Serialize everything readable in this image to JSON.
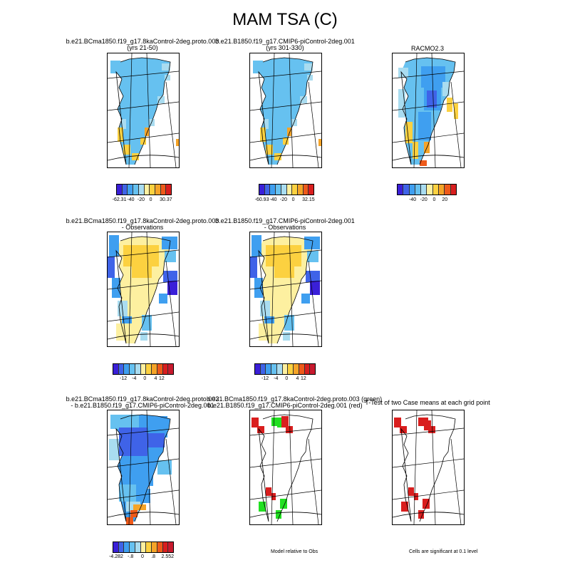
{
  "title": "MAM TSA (C)",
  "palette": [
    "#3a1fd8",
    "#3f63e8",
    "#3f9ff0",
    "#66c1f0",
    "#a9dcf0",
    "#fdf0a0",
    "#fcd140",
    "#f5a428",
    "#ee5a1a",
    "#d91e1e",
    "#c81a2e"
  ],
  "panels": {
    "p1": {
      "title": "b.e21.BCma1850.f19_g17.8kaControl-2deg.proto.003",
      "subtitle": "(yrs 21-50)",
      "labels": [
        "-62.31",
        "-40",
        "-20",
        "0",
        "30.37"
      ]
    },
    "p2": {
      "title": "b.e21.B1850.f19_g17.CMIP6-piControl-2deg.001",
      "subtitle": "(yrs 301-330)",
      "labels": [
        "-60.93",
        "-40",
        "-20",
        "0",
        "32.15"
      ]
    },
    "p3": {
      "title": "RACMO2.3",
      "labels": [
        "-40",
        "-20",
        "0",
        "20"
      ]
    },
    "p4": {
      "title": "b.e21.BCma1850.f19_g17.8kaControl-2deg.proto.003",
      "subtitle": "- Observations",
      "labels": [
        "-12",
        "-4",
        "0",
        "4",
        "12"
      ]
    },
    "p5": {
      "title": "b.e21.B1850.f19_g17.CMIP6-piControl-2deg.001",
      "subtitle": "- Observations",
      "labels": [
        "-12",
        "-4",
        "0",
        "4",
        "12"
      ]
    },
    "p7": {
      "title": "b.e21.BCma1850.f19_g17.8kaControl-2deg.proto.003",
      "subtitle": "- b.e21.B1850.f19_g17.CMIP6-piControl-2deg.001",
      "labels": [
        "-4.282",
        "-.8",
        "0",
        ".8",
        "2.552"
      ]
    },
    "p8": {
      "title": "b.e21.BCma1850.f19_g17.8kaControl-2deg.proto.003 (green)",
      "subtitle": "b.e21.B1850.f19_g17.CMIP6-piControl-2deg.001 (red)",
      "note": "Model relative to Obs"
    },
    "p9": {
      "title": "T-Test of two Case means at each grid point",
      "note": "Cells are significant at 0.1 level"
    }
  }
}
